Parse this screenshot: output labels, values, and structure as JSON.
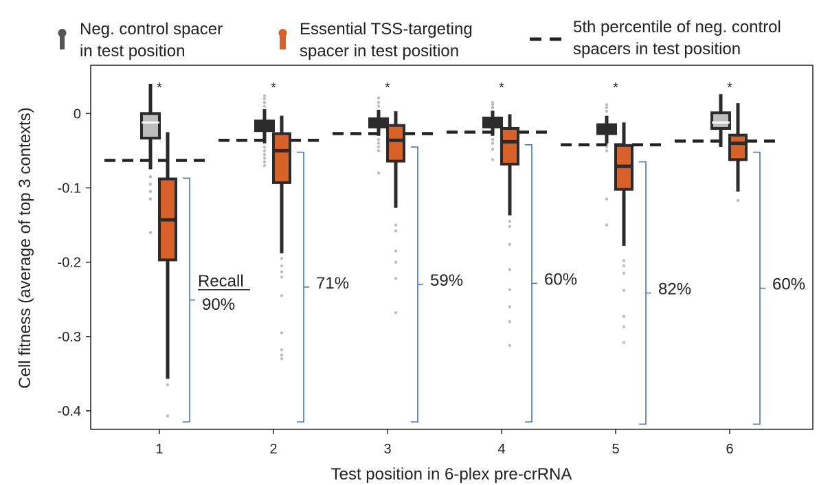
{
  "chart_data": {
    "type": "box",
    "xlabel": "Test position in 6-plex pre-crRNA",
    "ylabel": "Cell fitness (average of top 3 contexts)",
    "ylim": [
      -0.425,
      0.065
    ],
    "yticks": [
      0,
      -0.1,
      -0.2,
      -0.3,
      -0.4
    ],
    "ytick_labels": [
      "0",
      "-0.1",
      "-0.2",
      "-0.3",
      "-0.4"
    ],
    "categories": [
      "1",
      "2",
      "3",
      "4",
      "5",
      "6"
    ],
    "legend": [
      {
        "key": "neg",
        "line1": "Neg. control spacer",
        "line2": "in test position",
        "color": "#555555"
      },
      {
        "key": "ess",
        "line1": "Essential TSS-targeting",
        "line2": "spacer in test position",
        "color": "#d9622b"
      },
      {
        "key": "pct",
        "line1": "5th percentile of neg. control",
        "line2": "spacers in test position",
        "color": "#222222"
      }
    ],
    "recall_label": "Recall",
    "significance_marker": "*",
    "series": [
      {
        "name": "Neg. control spacer in test position",
        "color_fill": "#bdbdbd",
        "color_edge": "#2b2b2b",
        "boxes": [
          {
            "pos": "1",
            "q1": -0.033,
            "median": -0.012,
            "q3": 0.0,
            "wlo": -0.075,
            "whi": 0.04,
            "outliers": [
              -0.085,
              -0.095,
              -0.105,
              -0.115,
              -0.16
            ],
            "fill": "#bdbdbd"
          },
          {
            "pos": "2",
            "q1": -0.023,
            "median": -0.018,
            "q3": -0.01,
            "wlo": -0.04,
            "whi": 0.006,
            "outliers": [
              0.01,
              0.015,
              0.02,
              0.024,
              -0.045,
              -0.05,
              -0.055,
              -0.06,
              -0.065,
              -0.07
            ],
            "fill": "#2b2b2b"
          },
          {
            "pos": "3",
            "q1": -0.018,
            "median": -0.013,
            "q3": -0.007,
            "wlo": -0.03,
            "whi": 0.005,
            "outliers": [
              0.01,
              0.015,
              0.021,
              -0.035,
              -0.04,
              -0.045,
              -0.05,
              -0.08
            ],
            "fill": "#2b2b2b"
          },
          {
            "pos": "4",
            "q1": -0.018,
            "median": -0.013,
            "q3": -0.006,
            "wlo": -0.03,
            "whi": 0.004,
            "outliers": [
              0.008,
              0.012,
              0.015,
              -0.035,
              -0.04,
              -0.048,
              -0.062
            ],
            "fill": "#2b2b2b"
          },
          {
            "pos": "5",
            "q1": -0.027,
            "median": -0.022,
            "q3": -0.015,
            "wlo": -0.04,
            "whi": -0.003,
            "outliers": [
              0.003,
              0.008,
              0.012,
              -0.045,
              -0.05,
              -0.115,
              -0.15
            ],
            "fill": "#2b2b2b"
          },
          {
            "pos": "6",
            "q1": -0.02,
            "median": -0.012,
            "q3": 0.001,
            "wlo": -0.045,
            "whi": 0.026,
            "outliers": [],
            "fill": "#bdbdbd"
          }
        ]
      },
      {
        "name": "Essential TSS-targeting spacer in test position",
        "color_fill": "#d9622b",
        "color_edge": "#2b2b2b",
        "boxes": [
          {
            "pos": "1",
            "q1": -0.197,
            "median": -0.143,
            "q3": -0.088,
            "wlo": -0.357,
            "whi": -0.025,
            "outliers": [
              -0.365,
              -0.407
            ]
          },
          {
            "pos": "2",
            "q1": -0.093,
            "median": -0.05,
            "q3": -0.027,
            "wlo": -0.188,
            "whi": -0.003,
            "outliers": [
              -0.195,
              -0.205,
              -0.213,
              -0.22,
              -0.245,
              -0.295,
              -0.318,
              -0.325,
              -0.33
            ]
          },
          {
            "pos": "3",
            "q1": -0.064,
            "median": -0.036,
            "q3": -0.016,
            "wlo": -0.127,
            "whi": 0.003,
            "outliers": [
              -0.15,
              -0.158,
              -0.185,
              -0.2,
              -0.222,
              -0.268
            ]
          },
          {
            "pos": "4",
            "q1": -0.068,
            "median": -0.038,
            "q3": -0.02,
            "wlo": -0.137,
            "whi": -0.001,
            "outliers": [
              -0.145,
              -0.152,
              -0.176,
              -0.21,
              -0.237,
              -0.26,
              -0.28,
              -0.312
            ]
          },
          {
            "pos": "5",
            "q1": -0.102,
            "median": -0.071,
            "q3": -0.043,
            "wlo": -0.178,
            "whi": -0.012,
            "outliers": [
              -0.198,
              -0.205,
              -0.215,
              -0.238,
              -0.273,
              -0.287,
              -0.308
            ]
          },
          {
            "pos": "6",
            "q1": -0.062,
            "median": -0.04,
            "q3": -0.029,
            "wlo": -0.105,
            "whi": 0.014,
            "outliers": [
              -0.117
            ]
          }
        ]
      }
    ],
    "percentile_5th": [
      {
        "pos": "1",
        "value": -0.063
      },
      {
        "pos": "2",
        "value": -0.036
      },
      {
        "pos": "3",
        "value": -0.027
      },
      {
        "pos": "4",
        "value": -0.025
      },
      {
        "pos": "5",
        "value": -0.042
      },
      {
        "pos": "6",
        "value": -0.037
      }
    ],
    "recall": [
      {
        "pos": "1",
        "value": "90%",
        "top": -0.087,
        "bottom": -0.415
      },
      {
        "pos": "2",
        "value": "71%",
        "top": -0.052,
        "bottom": -0.415
      },
      {
        "pos": "3",
        "value": "59%",
        "top": -0.045,
        "bottom": -0.415
      },
      {
        "pos": "4",
        "value": "60%",
        "top": -0.042,
        "bottom": -0.415
      },
      {
        "pos": "5",
        "value": "82%",
        "top": -0.065,
        "bottom": -0.418
      },
      {
        "pos": "6",
        "value": "60%",
        "top": -0.052,
        "bottom": -0.418
      }
    ]
  }
}
